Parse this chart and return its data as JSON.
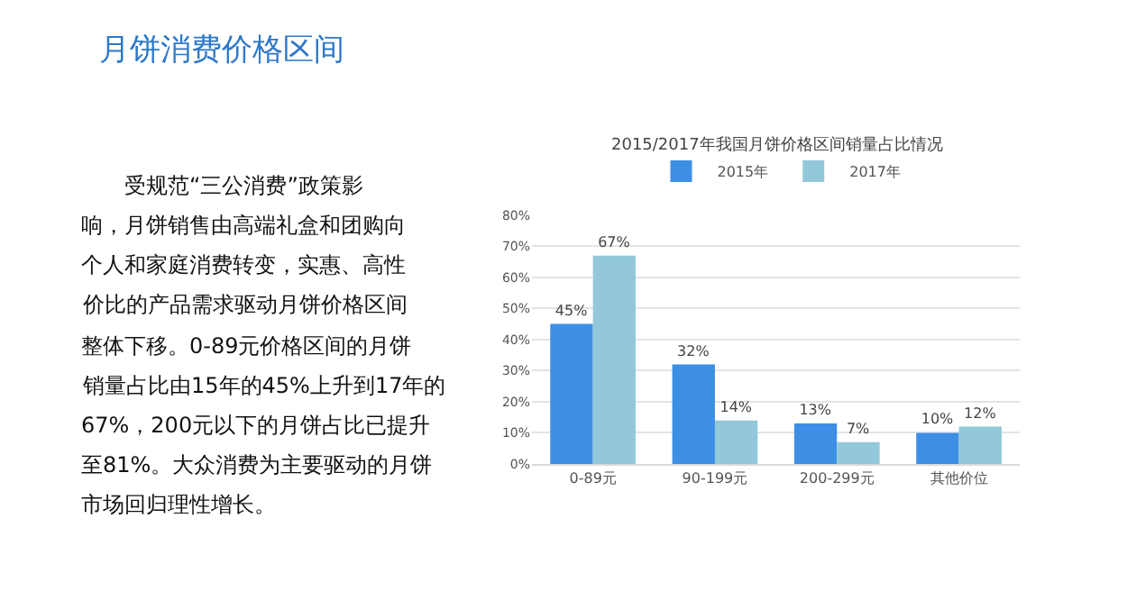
{
  "chart_data": {
    "type": "bar",
    "title": "月饼消费价格区间",
    "subtitle": "2015/2017年我国月饼价格区间销量占比情况",
    "annotations": [
      "　　受规范“三公消费”政策影",
      "响，月饼销售由高端礼盒和团购向",
      "个人和家庭消费转变，实惠、高性",
      "价比的产品需求驱动月饼价格区间",
      "整体下移。0-89元价格区间的月饼",
      "销量占比由15年的45%上升到17年的",
      "67%，200元以下的月饼占比已提升",
      "至81%。大众消费为主要驱动的月饼",
      "市场回归理性增长。"
    ],
    "categories": [
      "0-89元",
      "90-199元",
      "200-299元",
      "其他价位"
    ],
    "series": [
      {
        "name": "2015年",
        "color": "#3d8fe6",
        "values": [
          45,
          32,
          13,
          10
        ],
        "value_labels": [
          "45%",
          "32%",
          "13%",
          "10%"
        ]
      },
      {
        "name": "2017年",
        "color": "#92c8da",
        "values": [
          67,
          14,
          7,
          12
        ],
        "value_labels": [
          "67%",
          "14%",
          "7%",
          "12%"
        ]
      }
    ],
    "ylim": [
      0,
      80
    ],
    "yticks": [
      {
        "value": 0,
        "label": "0%"
      },
      {
        "value": 10,
        "label": "10%"
      },
      {
        "value": 20,
        "label": "20%"
      },
      {
        "value": 30,
        "label": "30%"
      },
      {
        "value": 40,
        "label": "40%"
      },
      {
        "value": 50,
        "label": "50%"
      },
      {
        "value": 60,
        "label": "60%"
      },
      {
        "value": 70,
        "label": "70%"
      },
      {
        "value": 80,
        "label": "80%"
      }
    ],
    "grid": "y",
    "legend": "top"
  }
}
